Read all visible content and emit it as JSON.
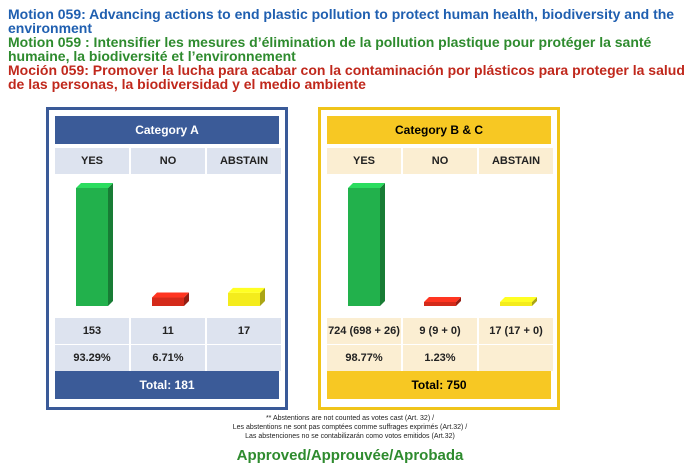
{
  "titles": {
    "en": "Motion 059: Advancing actions to end plastic pollution to protect human health, biodiversity and the environment",
    "fr": "Motion 059 : Intensifier les mesures d’élimination de la pollution plastique pour protéger la santé humaine, la biodiversité et l’environnement",
    "es": "Moción 059: Promover la lucha para acabar con la contaminación por plásticos para proteger la salud de las personas, la biodiversidad y el medio ambiente"
  },
  "colors": {
    "title_en": "#1f5fb0",
    "title_fr": "#2e8b2e",
    "title_es": "#c0281c",
    "yes_bar": "#22b14c",
    "no_bar": "#d42a1a",
    "abstain_bar": "#f4ec1c",
    "category_a_accent": "#3b5b98",
    "category_bc_accent": "#f7c823",
    "approved": "#2e8b2e"
  },
  "category_a": {
    "header": "Category A",
    "columns": [
      "YES",
      "NO",
      "ABSTAIN"
    ],
    "counts": [
      "153",
      "11",
      "17"
    ],
    "percentages": [
      "93.29%",
      "6.71%",
      ""
    ],
    "total": "Total: 181"
  },
  "category_bc": {
    "header": "Category B & C",
    "columns": [
      "YES",
      "NO",
      "ABSTAIN"
    ],
    "counts": [
      "724 (698 + 26)",
      "9 (9 + 0)",
      "17 (17 + 0)"
    ],
    "percentages": [
      "98.77%",
      "1.23%",
      ""
    ],
    "total": "Total: 750"
  },
  "chart_data": [
    {
      "type": "bar",
      "categories": [
        "YES",
        "NO",
        "ABSTAIN"
      ],
      "values": [
        153,
        11,
        17
      ]
    },
    {
      "type": "bar",
      "categories": [
        "YES",
        "NO",
        "ABSTAIN"
      ],
      "values": [
        724,
        9,
        17
      ]
    }
  ],
  "footnote": {
    "line1": "** Abstentions are not counted as votes cast (Art. 32) /",
    "line2": "Les abstentions ne sont pas comptées comme suffrages exprimés (Art.32) /",
    "line3": "Las abstenciones no se contabilizarán como votos emitidos (Art.32)"
  },
  "result": "Approved/Approuvée/Aprobada"
}
